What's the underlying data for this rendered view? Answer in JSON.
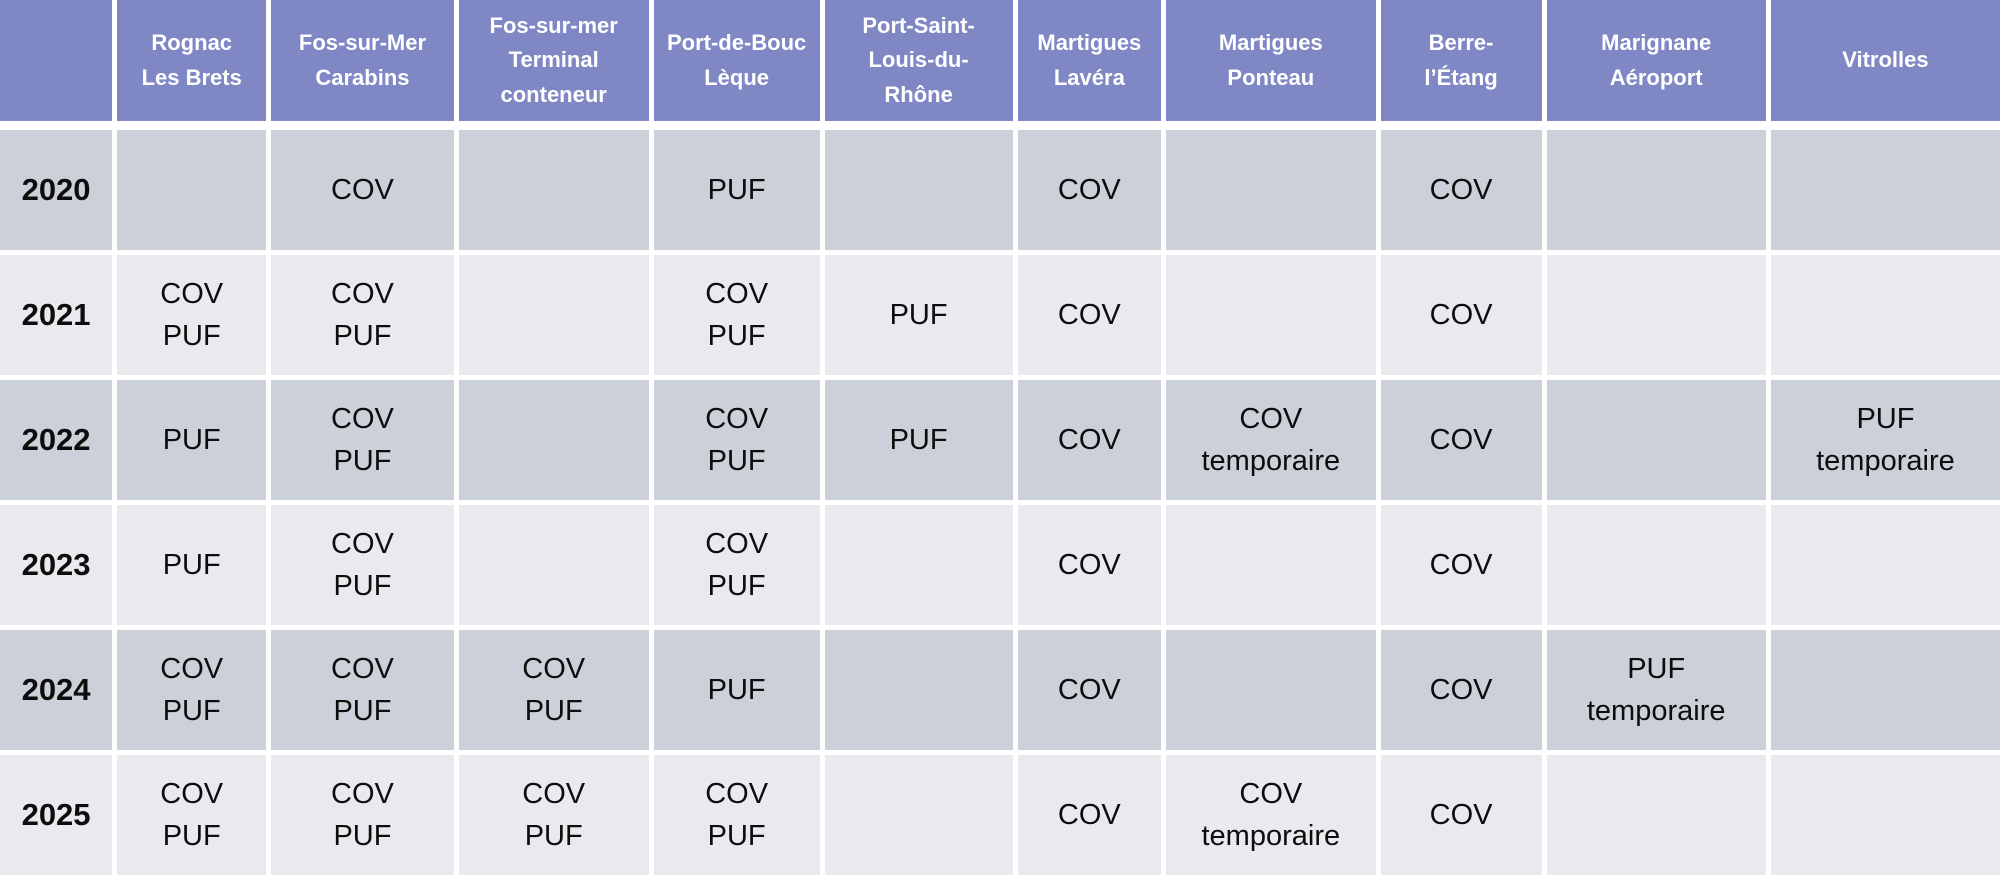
{
  "colors": {
    "header_bg": "#7f87c5",
    "header_text": "#ffffff",
    "row_dark_bg": "#ccd0d8",
    "row_light_bg": "#e8eaee",
    "cell_text": "#0d0d0d",
    "gutter": "#ffffff"
  },
  "table": {
    "corner_label": "",
    "columns": [
      "Rognac\nLes Brets",
      "Fos-sur-Mer\nCarabins",
      "Fos-sur-mer\nTerminal\nconteneur",
      "Port-de-Bouc\nLèque",
      "Port-Saint-\nLouis-du-\nRhône",
      "Martigues\nLavéra",
      "Martigues\nPonteau",
      "Berre-\nl’Étang",
      "Marignane\nAéroport",
      "Vitrolles"
    ],
    "rows": [
      {
        "year": "2020",
        "cells": [
          "",
          "COV",
          "",
          "PUF",
          "",
          "COV",
          "",
          "COV",
          "",
          ""
        ]
      },
      {
        "year": "2021",
        "cells": [
          "COV\nPUF",
          "COV\nPUF",
          "",
          "COV\nPUF",
          "PUF",
          "COV",
          "",
          "COV",
          "",
          ""
        ]
      },
      {
        "year": "2022",
        "cells": [
          "PUF",
          "COV\nPUF",
          "",
          "COV\nPUF",
          "PUF",
          "COV",
          "COV\ntemporaire",
          "COV",
          "",
          "PUF\ntemporaire"
        ]
      },
      {
        "year": "2023",
        "cells": [
          "PUF",
          "COV\nPUF",
          "",
          "COV\nPUF",
          "",
          "COV",
          "",
          "COV",
          "",
          ""
        ]
      },
      {
        "year": "2024",
        "cells": [
          "COV\nPUF",
          "COV\nPUF",
          "COV\nPUF",
          "PUF",
          "",
          "COV",
          "",
          "COV",
          "PUF\ntemporaire",
          ""
        ]
      },
      {
        "year": "2025",
        "cells": [
          "COV\nPUF",
          "COV\nPUF",
          "COV\nPUF",
          "COV\nPUF",
          "",
          "COV",
          "COV\ntemporaire",
          "COV",
          "",
          ""
        ]
      }
    ]
  }
}
